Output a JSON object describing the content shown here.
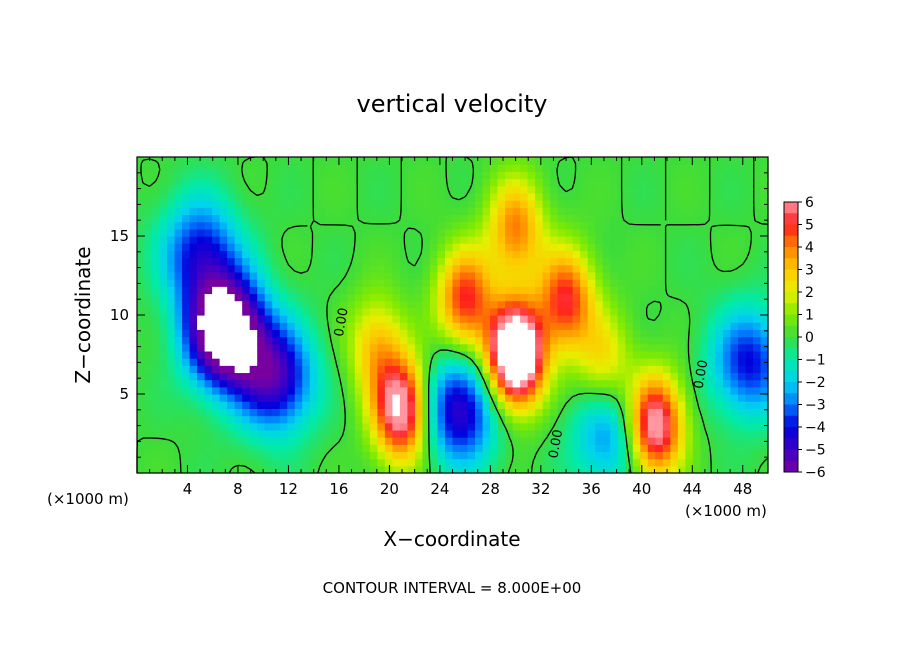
{
  "chart_data": {
    "type": "heatmap",
    "title": "vertical velocity",
    "xlabel": "X−coordinate",
    "ylabel": "Z−coordinate",
    "x_unit": "(×1000 m)",
    "x_unit_right": "(×1000 m)",
    "xlim": [
      0,
      50
    ],
    "ylim": [
      0,
      20
    ],
    "x_ticks": [
      "4",
      "8",
      "12",
      "16",
      "20",
      "24",
      "28",
      "32",
      "36",
      "40",
      "44",
      "48"
    ],
    "y_ticks": [
      "5",
      "10",
      "15"
    ],
    "colorbar": {
      "ticks": [
        "6",
        "5",
        "4",
        "3",
        "2",
        "1",
        "0",
        "−1",
        "−2",
        "−3",
        "−4",
        "−5",
        "−6"
      ],
      "range": [
        -6,
        6
      ]
    },
    "contour_labels": [
      "0.00",
      "0.00",
      "0.00"
    ],
    "footer": "CONTOUR INTERVAL =  8.000E+00",
    "features": [
      {
        "kind": "updraft",
        "x": 30,
        "z": 7.5,
        "amp": 10
      },
      {
        "kind": "updraft",
        "x": 26,
        "z": 11,
        "amp": 5
      },
      {
        "kind": "updraft",
        "x": 34,
        "z": 11,
        "amp": 5
      },
      {
        "kind": "updraft",
        "x": 30,
        "z": 15.5,
        "amp": 4
      },
      {
        "kind": "updraft",
        "x": 21,
        "z": 4,
        "amp": 7
      },
      {
        "kind": "updraft",
        "x": 41,
        "z": 3,
        "amp": 7
      },
      {
        "kind": "updraft",
        "x": 19,
        "z": 8,
        "amp": 3
      },
      {
        "kind": "updraft",
        "x": 37,
        "z": 7,
        "amp": 2.5
      },
      {
        "kind": "downdraft",
        "x": 7,
        "z": 9,
        "amp": -9
      },
      {
        "kind": "downdraft",
        "x": 5,
        "z": 14,
        "amp": -4
      },
      {
        "kind": "downdraft",
        "x": 11,
        "z": 6,
        "amp": -5
      },
      {
        "kind": "downdraft",
        "x": 25.5,
        "z": 4,
        "amp": -5
      },
      {
        "kind": "downdraft",
        "x": 37.5,
        "z": 2.5,
        "amp": -3
      },
      {
        "kind": "downdraft",
        "x": 48.5,
        "z": 7,
        "amp": -4
      }
    ]
  }
}
